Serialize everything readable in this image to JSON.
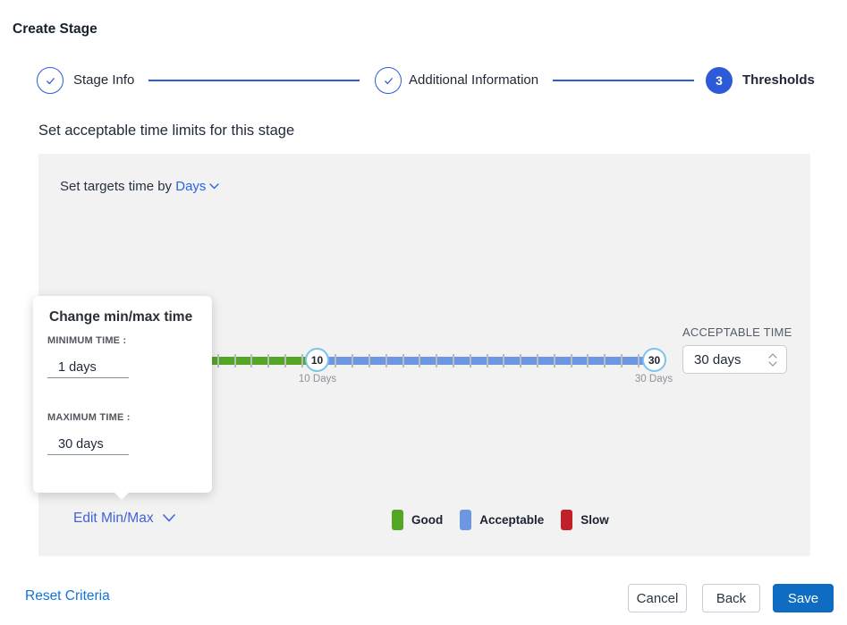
{
  "page": {
    "title": "Create Stage"
  },
  "stepper": {
    "steps": [
      {
        "label": "Stage Info",
        "state": "complete"
      },
      {
        "label": "Additional Information",
        "state": "complete"
      },
      {
        "label": "Thresholds",
        "state": "active",
        "number": "3"
      }
    ]
  },
  "section": {
    "heading": "Set acceptable time limits for this stage"
  },
  "panel": {
    "targets_prefix": "Set targets time by",
    "targets_unit": "Days",
    "slider": {
      "handles": [
        {
          "value": "10",
          "label": "10 Days"
        },
        {
          "value": "30",
          "label": "30 Days"
        }
      ],
      "colors": {
        "good": "#53a626",
        "acceptable": "#6d96e3",
        "slow": "#c1202a"
      }
    },
    "acceptable_time": {
      "label": "ACCEPTABLE TIME",
      "value": "30 days"
    },
    "edit_minmax_label": "Edit Min/Max",
    "legend": [
      {
        "label": "Good",
        "color": "#53a626"
      },
      {
        "label": "Acceptable",
        "color": "#6d96e3"
      },
      {
        "label": "Slow",
        "color": "#c1202a"
      }
    ]
  },
  "popup": {
    "title": "Change min/max time",
    "min_label": "MINIMUM TIME :",
    "min_value": "1 days",
    "max_label": "MAXIMUM TIME :",
    "max_value": "30 days"
  },
  "footer": {
    "reset_label": "Reset Criteria",
    "cancel_label": "Cancel",
    "back_label": "Back",
    "save_label": "Save"
  }
}
